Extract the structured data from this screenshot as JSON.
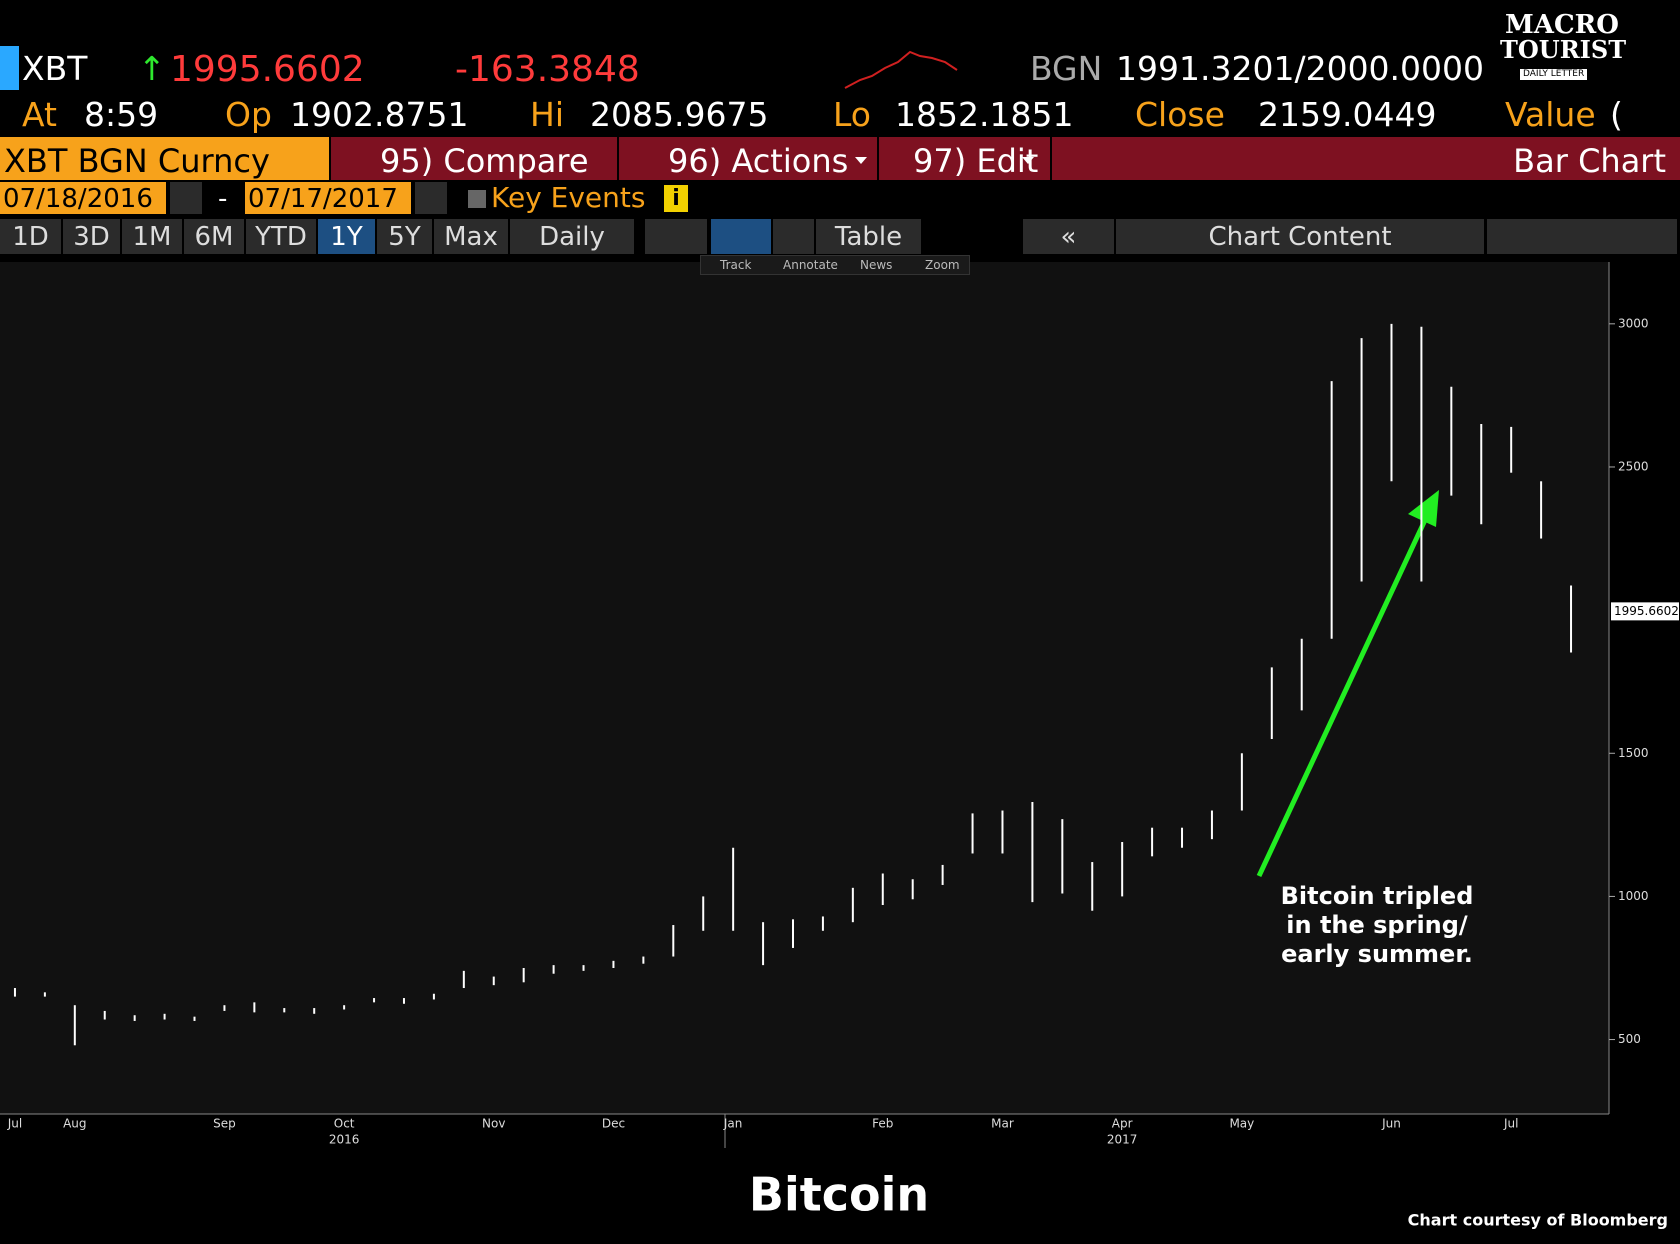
{
  "quote": {
    "ticker": "XBT",
    "arrow": "↑",
    "last": "1995.6602",
    "change": "-163.3848",
    "source": "BGN",
    "bid_ask": "1991.3201/2000.0000"
  },
  "stats": [
    {
      "label": "At",
      "value": "8:59"
    },
    {
      "label": "Op",
      "value": "1902.8751"
    },
    {
      "label": "Hi",
      "value": "2085.9675"
    },
    {
      "label": "Lo",
      "value": "1852.1851"
    },
    {
      "label": "Close",
      "value": "2159.0449"
    },
    {
      "label": "Value",
      "value": "("
    }
  ],
  "menu": {
    "security": "XBT BGN Curncy",
    "items": [
      "95) Compare",
      "96) Actions",
      "97) Edit"
    ],
    "chart_type": "Bar Chart"
  },
  "dates": {
    "start": "07/18/2016",
    "separator": "-",
    "end": "07/17/2017",
    "key_events": "Key Events",
    "info": "i"
  },
  "periods": [
    "1D",
    "3D",
    "1M",
    "6M",
    "YTD",
    "1Y",
    "5Y",
    "Max"
  ],
  "frequency": "Daily",
  "table": "Table",
  "collapse": "«",
  "chart_content": "Chart Content",
  "tools": [
    "Track",
    "Annotate",
    "News",
    "Zoom"
  ],
  "logo": {
    "line1": "MACRO",
    "line2": "TOURIST",
    "line3": "DAILY LETTER"
  },
  "chart_data": {
    "type": "range_bar",
    "title": "Bitcoin",
    "credit": "Chart courtesy of Bloomberg",
    "annotation": [
      "Bitcoin tripled",
      "in the spring/",
      "early summer."
    ],
    "categories": [
      "Jul",
      null,
      "Aug",
      null,
      null,
      null,
      null,
      "Sep",
      null,
      null,
      null,
      "Oct",
      null,
      null,
      null,
      null,
      "Nov",
      null,
      null,
      null,
      "Dec",
      null,
      null,
      null,
      "Jan",
      null,
      null,
      null,
      null,
      "Feb",
      null,
      null,
      null,
      "Mar",
      null,
      null,
      null,
      "Apr",
      null,
      null,
      null,
      "May",
      null,
      null,
      null,
      null,
      "Jun",
      null,
      null,
      null,
      "Jul",
      null,
      null
    ],
    "year_labels": [
      "2016",
      "2017"
    ],
    "series": [
      {
        "name": "High",
        "color": "#ffffff",
        "values": [
          680,
          665,
          620,
          600,
          585,
          590,
          580,
          620,
          630,
          610,
          610,
          620,
          645,
          645,
          660,
          740,
          720,
          750,
          760,
          760,
          775,
          790,
          900,
          1000,
          1170,
          910,
          920,
          930,
          1030,
          1080,
          1060,
          1110,
          1290,
          1300,
          1330,
          1270,
          1120,
          1190,
          1240,
          1240,
          1300,
          1500,
          1800,
          1900,
          2800,
          2950,
          3000,
          2990,
          2780,
          2650,
          2640,
          2450,
          2086
        ]
      },
      {
        "name": "Low",
        "color": "#ffffff",
        "values": [
          650,
          650,
          480,
          570,
          565,
          570,
          565,
          600,
          595,
          595,
          590,
          605,
          630,
          625,
          640,
          680,
          690,
          700,
          730,
          740,
          750,
          765,
          790,
          880,
          880,
          760,
          820,
          880,
          910,
          970,
          990,
          1040,
          1150,
          1150,
          980,
          1010,
          950,
          1000,
          1140,
          1170,
          1200,
          1300,
          1550,
          1650,
          1900,
          2100,
          2450,
          2100,
          2400,
          2300,
          2480,
          2250,
          1852
        ]
      }
    ],
    "last_price": 1995.6602,
    "ylim": [
      240,
      3195
    ],
    "yticks": [
      500,
      1000,
      1500,
      2500,
      3000
    ]
  }
}
